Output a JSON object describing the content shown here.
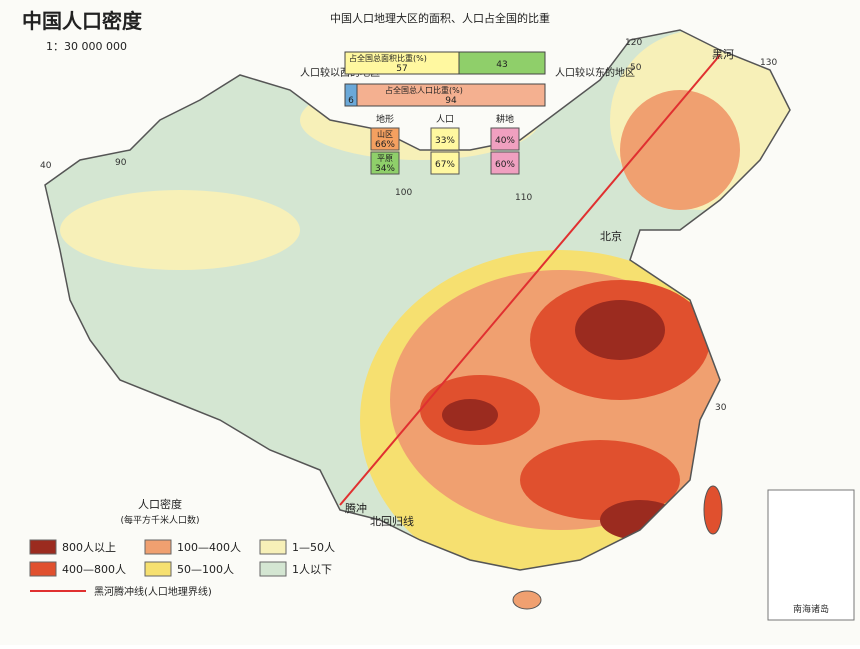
{
  "header": {
    "title": "中国人口密度",
    "scale": "1：30 000 000"
  },
  "inset": {
    "title": "中国人口地理大区的面积、人口占全国的比重",
    "west_label": "人口较以西的地区",
    "east_label": "人口较以东的地区",
    "bars": [
      {
        "label": "占全国总面积比重(%)",
        "west": 57,
        "east": 43
      },
      {
        "label": "占全国总人口比重(%)",
        "west": 6,
        "east": 94
      }
    ],
    "columns": [
      {
        "header": "地形",
        "items": [
          {
            "label": "山区",
            "value": "66%"
          },
          {
            "label": "平原",
            "value": "34%"
          }
        ]
      },
      {
        "header": "人口",
        "items": [
          {
            "value": "33%"
          },
          {
            "value": "67%"
          }
        ]
      },
      {
        "header": "耕地",
        "items": [
          {
            "value": "40%"
          },
          {
            "value": "60%"
          }
        ]
      }
    ]
  },
  "legend": {
    "title": "人口密度",
    "subtitle": "(每平方千米人口数)",
    "items": [
      {
        "label": "800人以上",
        "color": "#9b2b1f"
      },
      {
        "label": "400—800人",
        "color": "#e0502e"
      },
      {
        "label": "100—400人",
        "color": "#f0a070"
      },
      {
        "label": "50—100人",
        "color": "#f6e070"
      },
      {
        "label": "1—50人",
        "color": "#f7f0b8"
      },
      {
        "label": "1人以下",
        "color": "#d4e6d2"
      }
    ],
    "line_label": "黑河腾冲线(人口地理界线)",
    "line_color": "#e03030"
  },
  "map": {
    "heihe": "黑河",
    "tengchong": "腾冲",
    "beijing": "北京",
    "tropic": "北回归线",
    "inset_label": "南海诸岛",
    "meridians": [
      "90",
      "100",
      "110",
      "120",
      "130"
    ],
    "parallels": [
      "50",
      "40",
      "30"
    ]
  }
}
